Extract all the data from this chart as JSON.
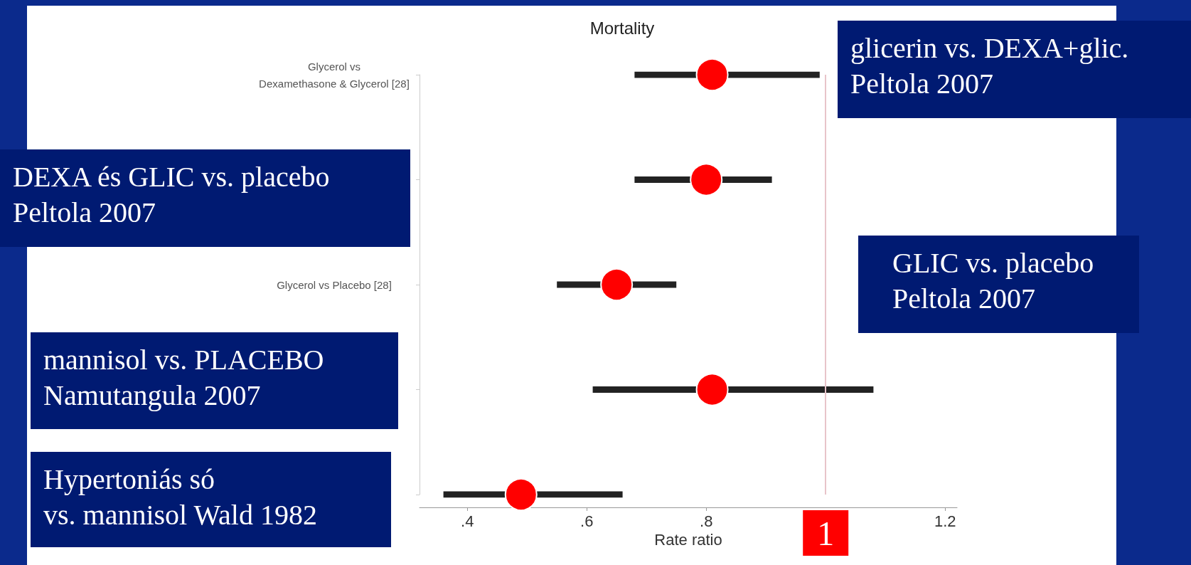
{
  "chart_data": {
    "type": "scatter",
    "orientation": "horizontal",
    "title": "Mortality",
    "xlabel": "Rate ratio",
    "categories": [
      "Glycerol vs\nDexamethasone & Glycerol [28]",
      null,
      "Glycerol vs Placebo [28]",
      null,
      null
    ],
    "values": [
      0.81,
      0.8,
      0.65,
      0.81,
      0.49
    ],
    "errors": [
      [
        0.68,
        0.99
      ],
      [
        0.68,
        0.91
      ],
      [
        0.55,
        0.75
      ],
      [
        0.61,
        1.08
      ],
      [
        0.36,
        0.66
      ]
    ],
    "color": "#ff0000",
    "marker": "circle",
    "xlim": [
      0.32,
      1.22
    ],
    "xticks": [
      {
        "value": 0.4,
        "label": ".4"
      },
      {
        "value": 0.6,
        "label": ".6"
      },
      {
        "value": 0.8,
        "label": ".8"
      },
      {
        "value": 1.2,
        "label": "1.2"
      }
    ],
    "ref_lines": [
      {
        "axis": "x",
        "value": 1,
        "label": "1",
        "color": "#e8c4ca"
      }
    ],
    "annotations": [
      "glicerin vs. DEXA+glic.\nPeltola 2007",
      "DEXA és GLIC vs. placebo\nPeltola 2007",
      "GLIC vs. placebo\nPeltola 2007",
      "mannisol vs. PLACEBO\nNamutangula 2007",
      "Hypertoniás só\nvs. mannisol Wald 1982"
    ]
  }
}
